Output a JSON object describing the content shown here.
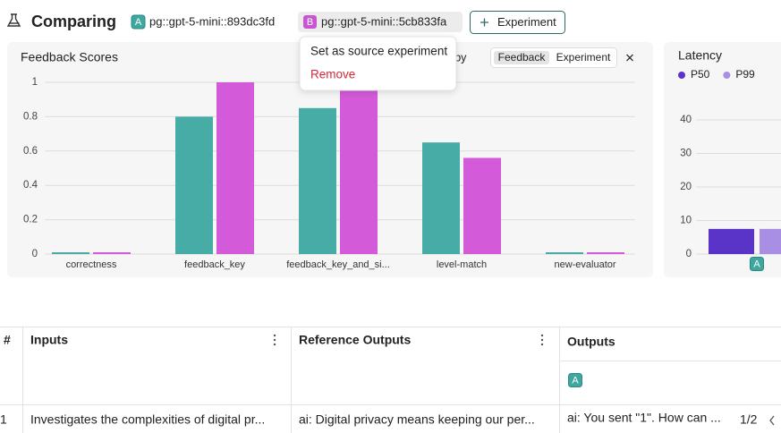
{
  "header": {
    "title": "Comparing",
    "experiments": [
      {
        "badge": "A",
        "name": "pg::gpt-5-mini::893dc3fd"
      },
      {
        "badge": "B",
        "name": "pg::gpt-5-mini::5cb833fa"
      }
    ],
    "add_button": "Experiment"
  },
  "menu": {
    "items": [
      "Set as source experiment",
      "Remove"
    ]
  },
  "chart_data": [
    {
      "type": "bar",
      "title": "Feedback Scores",
      "group_by": {
        "label": "Group by",
        "options": [
          "Feedback",
          "Experiment"
        ]
      },
      "categories": [
        "correctness",
        "feedback_key",
        "feedback_key_and_si...",
        "level-match",
        "new-evaluator"
      ],
      "series": [
        {
          "color": "#47aca6",
          "values": [
            0,
            0.8,
            0.85,
            0.65,
            0
          ]
        },
        {
          "color": "#d35ad9",
          "values": [
            0,
            1,
            1,
            0.56,
            0
          ]
        }
      ],
      "ylim": [
        0,
        1
      ],
      "yticks": [
        0,
        0.2,
        0.4,
        0.6,
        0.8,
        1
      ],
      "grid": true
    },
    {
      "type": "bar",
      "title": "Latency",
      "categories": [
        "A"
      ],
      "series": [
        {
          "name": "P50",
          "color": "#5a34c8",
          "values": [
            7.5
          ]
        },
        {
          "name": "P99",
          "color": "#a98fe3",
          "values": [
            7.5
          ]
        }
      ],
      "ylim": [
        0,
        40
      ],
      "yticks": [
        0,
        10,
        20,
        30,
        40
      ],
      "grid": true
    }
  ],
  "table": {
    "columns": [
      "#",
      "Inputs",
      "Reference Outputs",
      "Outputs"
    ],
    "output_badge": "A",
    "rows": [
      [
        1,
        "Investigates the complexities of digital pr...",
        "ai: Digital privacy means keeping our per...",
        "ai: You sent \"1\". How can ..."
      ]
    ],
    "pagination": "1/2"
  }
}
